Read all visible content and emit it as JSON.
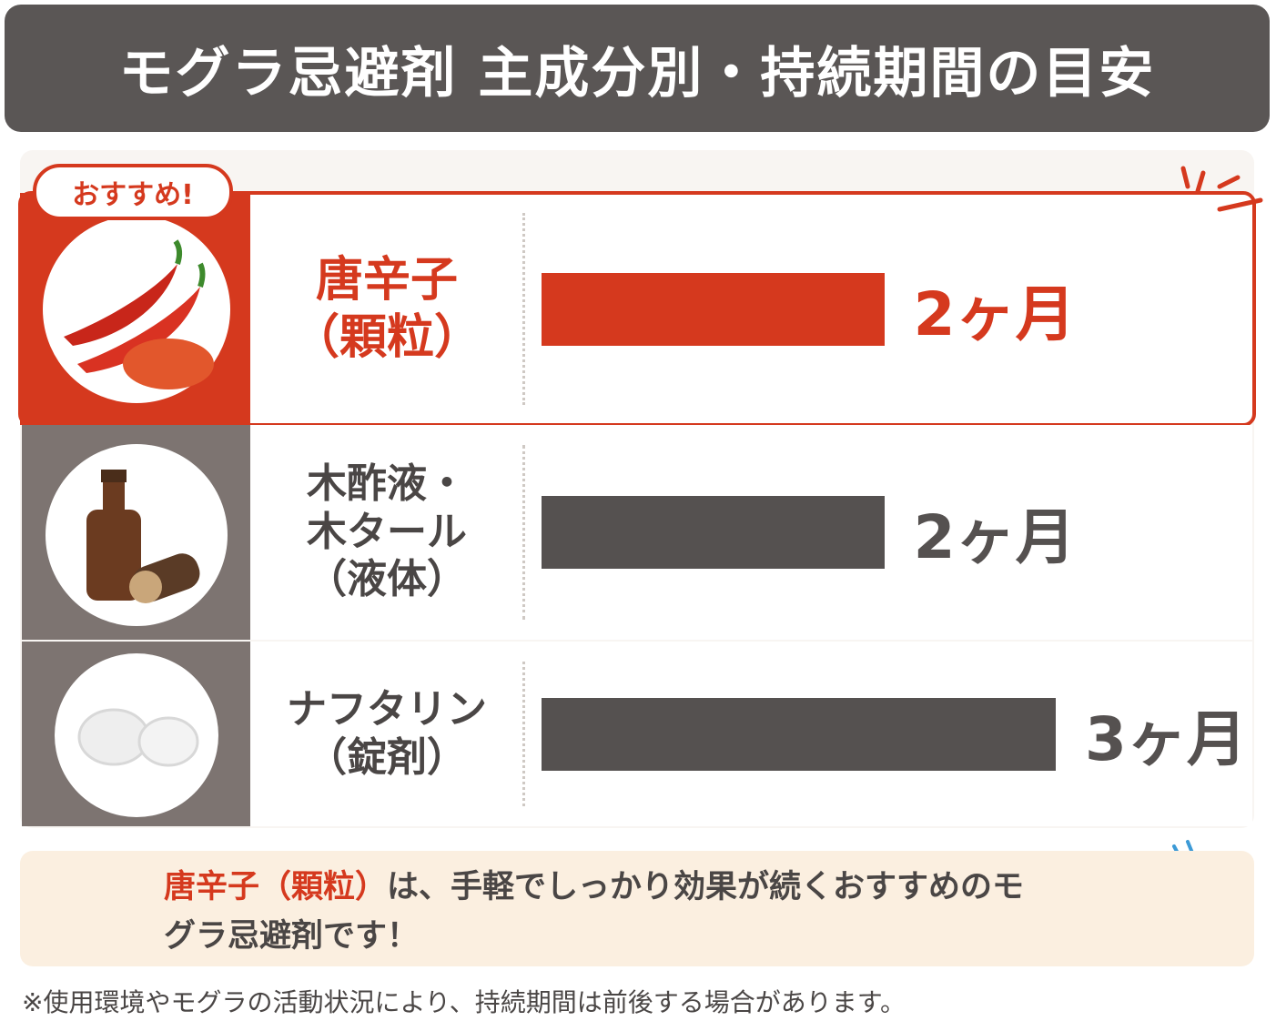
{
  "chart_data": {
    "type": "bar",
    "title": "モグラ忌避剤 主成分別・持続期間の目安",
    "badge": "おすすめ!",
    "categories": [
      "唐辛子\n（顆粒）",
      "木酢液・\n木タール\n（液体）",
      "ナフタリン\n（錠剤）"
    ],
    "values": [
      2,
      2,
      3
    ],
    "value_labels": [
      "2ヶ月",
      "2ヶ月",
      "3ヶ月"
    ],
    "colors": [
      "#d5391e",
      "#555150",
      "#555150"
    ],
    "callout": {
      "highlight": "唐辛子（顆粒）",
      "text": "は、手軽でしっかり効果が続くおすすめのモグラ忌避剤です！"
    },
    "footnote": "※使用環境やモグラの活動状況により、持続期間は前後する場合があります。"
  }
}
